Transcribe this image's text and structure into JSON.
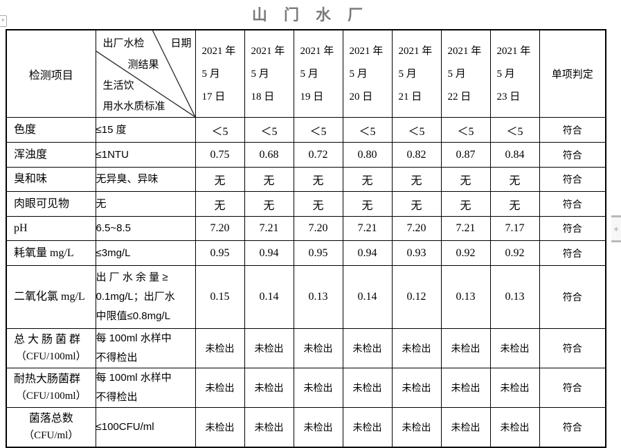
{
  "title": "山 门 水 厂",
  "colors": {
    "title": "#7a7a7a",
    "border": "#000000"
  },
  "icons": {
    "table-handle-icon": "+",
    "zoom-plus-icon": "+"
  },
  "header": {
    "item_col": "检测项目",
    "corner": {
      "axis_label": "日期",
      "result_line1": "出厂水检",
      "result_line2": "测结果",
      "standard_line1": "生活饮",
      "standard_line2": "用水水质标准"
    },
    "dates": [
      [
        "2021 年",
        "5 月",
        "17 日"
      ],
      [
        "2021 年",
        "5 月",
        "18 日"
      ],
      [
        "2021 年",
        "5 月",
        "19 日"
      ],
      [
        "2021 年",
        "5 月",
        "20 日"
      ],
      [
        "2021 年",
        "5 月",
        "21 日"
      ],
      [
        "2021 年",
        "5 月",
        "22 日"
      ],
      [
        "2021 年",
        "5 月",
        "23 日"
      ]
    ],
    "judge_col": "单项判定"
  },
  "rows": [
    {
      "item": "色度",
      "item_sub": "",
      "standard": "≤15 度",
      "values": [
        "＜5",
        "＜5",
        "＜5",
        "＜5",
        "＜5",
        "＜5",
        "＜5"
      ],
      "judge": "符合"
    },
    {
      "item": "浑浊度",
      "item_sub": "",
      "standard": "≤1NTU",
      "values": [
        "0.75",
        "0.68",
        "0.72",
        "0.80",
        "0.82",
        "0.87",
        "0.84"
      ],
      "judge": "符合"
    },
    {
      "item": "臭和味",
      "item_sub": "",
      "standard": "无异臭、异味",
      "values": [
        "无",
        "无",
        "无",
        "无",
        "无",
        "无",
        "无"
      ],
      "judge": "符合"
    },
    {
      "item": "肉眼可见物",
      "item_sub": "",
      "standard": "无",
      "values": [
        "无",
        "无",
        "无",
        "无",
        "无",
        "无",
        "无"
      ],
      "judge": "符合"
    },
    {
      "item": "pH",
      "item_sub": "",
      "standard": "6.5~8.5",
      "values": [
        "7.20",
        "7.21",
        "7.20",
        "7.21",
        "7.20",
        "7.21",
        "7.17"
      ],
      "judge": "符合"
    },
    {
      "item": "耗氧量 mg/L",
      "item_sub": "",
      "standard": "≤3mg/L",
      "values": [
        "0.95",
        "0.94",
        "0.95",
        "0.94",
        "0.93",
        "0.92",
        "0.92"
      ],
      "judge": "符合"
    },
    {
      "item": "二氧化氯 mg/L",
      "item_sub": "",
      "standard": "出 厂 水 余 量 ≥\n0.1mg/L；出厂水\n中限值≤0.8mg/L",
      "values": [
        "0.15",
        "0.14",
        "0.13",
        "0.14",
        "0.12",
        "0.13",
        "0.13"
      ],
      "judge": "符合"
    },
    {
      "item": "总 大 肠 菌 群",
      "item_sub": "（CFU/100ml）",
      "standard": "每 100ml 水样中\n不得检出",
      "values": [
        "未检出",
        "未检出",
        "未检出",
        "未检出",
        "未检出",
        "未检出",
        "未检出"
      ],
      "judge": "符合"
    },
    {
      "item": "耐热大肠菌群",
      "item_sub": "（CFU/100ml）",
      "standard": "每 100ml 水样中\n不得检出",
      "values": [
        "未检出",
        "未检出",
        "未检出",
        "未检出",
        "未检出",
        "未检出",
        "未检出"
      ],
      "judge": "符合"
    },
    {
      "item": "菌落总数",
      "item_sub": "（CFU/ml）",
      "standard": "≤100CFU/ml",
      "values": [
        "未检出",
        "未检出",
        "未检出",
        "未检出",
        "未检出",
        "未检出",
        "未检出"
      ],
      "judge": "符合"
    }
  ]
}
